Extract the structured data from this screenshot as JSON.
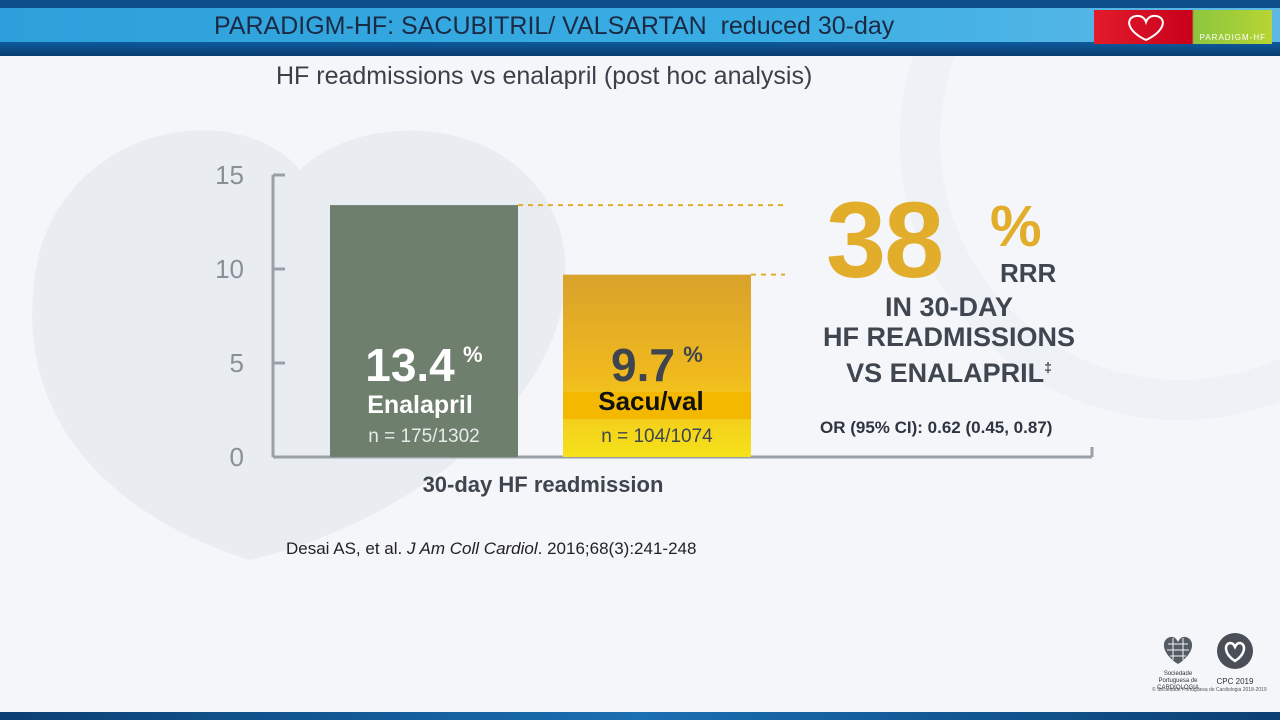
{
  "header": {
    "title": "PARADIGM-HF: SACUBITRIL/ VALSARTAN  reduced 30-day",
    "logo_text": "PARADIGM-HF"
  },
  "subtitle": "HF readmissions vs enalapril (post hoc analysis)",
  "chart_data": {
    "type": "bar",
    "categories": [
      "Enalapril",
      "Sacu/val"
    ],
    "values": [
      13.4,
      9.7
    ],
    "value_labels": [
      "13.4",
      "9.7"
    ],
    "value_suffix": "%",
    "n_labels": [
      "n = 175/1302",
      "n = 104/1074"
    ],
    "xlabel": "30-day HF readmission",
    "ylabel": "",
    "yticks": [
      "0",
      "5",
      "10",
      "15"
    ],
    "ytick_values": [
      0,
      5,
      10,
      15
    ],
    "ylim": [
      0,
      15
    ],
    "colors": [
      "#6e7f6e",
      "#e8b22c"
    ],
    "highlight": {
      "value": "38",
      "suffix": "%",
      "label": "RRR",
      "description_lines": [
        "IN 30-DAY",
        "HF READMISSIONS",
        "VS ENALAPRIL"
      ],
      "footnote_mark": "‡",
      "color": "#e2ad2a"
    },
    "odds_ratio": "OR (95% CI): 0.62 (0.45, 0.87)"
  },
  "citation": {
    "authors": "Desai AS, et al.",
    "journal": "J Am Coll Cardiol",
    "details": ". 2016;68(3):241-248"
  },
  "footer": {
    "society_name": "Sociedade Portuguesa de CARDIOLOGIA",
    "congress": "CPC 2019",
    "copyright": "© Sociedade Portuguesa de Cardiologia 2018-2019"
  }
}
